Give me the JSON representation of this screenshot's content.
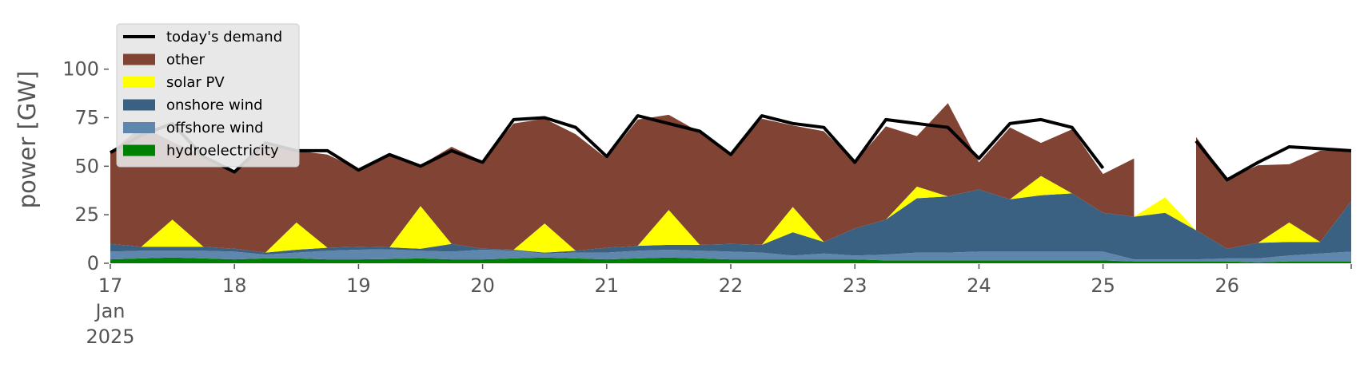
{
  "chart_data": {
    "type": "area",
    "title": "",
    "xlabel": "",
    "ylabel": "power [GW]",
    "ylim": [
      0,
      120
    ],
    "xlim": [
      "2025-01-17",
      "2025-01-27"
    ],
    "yticks": [
      0,
      25,
      50,
      75,
      100
    ],
    "xticks": [
      {
        "value": "2025-01-17",
        "lines": [
          "17",
          "Jan",
          "2025"
        ]
      },
      {
        "value": "2025-01-18",
        "lines": [
          "18"
        ]
      },
      {
        "value": "2025-01-19",
        "lines": [
          "19"
        ]
      },
      {
        "value": "2025-01-20",
        "lines": [
          "20"
        ]
      },
      {
        "value": "2025-01-21",
        "lines": [
          "21"
        ]
      },
      {
        "value": "2025-01-22",
        "lines": [
          "22"
        ]
      },
      {
        "value": "2025-01-23",
        "lines": [
          "23"
        ]
      },
      {
        "value": "2025-01-24",
        "lines": [
          "24"
        ]
      },
      {
        "value": "2025-01-25",
        "lines": [
          "25"
        ]
      },
      {
        "value": "2025-01-26",
        "lines": [
          "26"
        ]
      }
    ],
    "grid": false,
    "legend_placement": "top-left",
    "stacked": true,
    "x": [
      "2025-01-17 00:00",
      "2025-01-17 06:00",
      "2025-01-17 12:00",
      "2025-01-17 18:00",
      "2025-01-18 00:00",
      "2025-01-18 06:00",
      "2025-01-18 12:00",
      "2025-01-18 18:00",
      "2025-01-19 00:00",
      "2025-01-19 06:00",
      "2025-01-19 12:00",
      "2025-01-19 18:00",
      "2025-01-20 00:00",
      "2025-01-20 06:00",
      "2025-01-20 12:00",
      "2025-01-20 18:00",
      "2025-01-21 00:00",
      "2025-01-21 06:00",
      "2025-01-21 12:00",
      "2025-01-21 18:00",
      "2025-01-22 00:00",
      "2025-01-22 06:00",
      "2025-01-22 12:00",
      "2025-01-22 18:00",
      "2025-01-23 00:00",
      "2025-01-23 06:00",
      "2025-01-23 12:00",
      "2025-01-23 18:00",
      "2025-01-24 00:00",
      "2025-01-24 06:00",
      "2025-01-24 12:00",
      "2025-01-24 18:00",
      "2025-01-25 00:00",
      "2025-01-25 06:00",
      "2025-01-25 12:00",
      "2025-01-25 18:00",
      "2025-01-26 00:00",
      "2025-01-26 06:00",
      "2025-01-26 12:00",
      "2025-01-26 18:00",
      "2025-01-27 00:00"
    ],
    "series": [
      {
        "name": "hydroelectricity",
        "color": "#008000",
        "values": [
          2,
          2.5,
          3,
          2.5,
          2,
          2.5,
          2.5,
          2,
          2,
          2.2,
          2.5,
          2,
          2,
          2.5,
          3,
          2.5,
          2,
          2.5,
          3,
          2.5,
          2,
          2,
          2,
          2,
          2,
          1.5,
          1.5,
          1.5,
          1.5,
          1.5,
          1.5,
          1.5,
          1.5,
          1,
          1,
          1,
          1,
          0.5,
          1,
          1,
          1
        ]
      },
      {
        "name": "offshore wind",
        "color": "#5f86ad",
        "values": [
          4,
          4,
          3.5,
          4,
          4,
          2,
          3,
          4.5,
          5,
          5,
          4,
          4,
          5,
          4,
          2,
          3,
          3.5,
          4,
          4,
          4,
          4,
          3.5,
          2,
          3,
          2,
          3,
          4,
          4,
          4.5,
          4.5,
          4.5,
          4.5,
          4.5,
          1,
          1,
          1,
          1.5,
          2,
          3,
          4,
          5
        ]
      },
      {
        "name": "onshore wind",
        "color": "#3b6182",
        "values": [
          4,
          2,
          2,
          2,
          1.5,
          1,
          1.5,
          1.5,
          1.5,
          1,
          1,
          4,
          0.5,
          0.5,
          0.5,
          1,
          2.5,
          2.5,
          2.5,
          3,
          4,
          4,
          12,
          6,
          14,
          18,
          28,
          29,
          32,
          27,
          29,
          30,
          20,
          22,
          24,
          15,
          5,
          8,
          7,
          6,
          26
        ]
      },
      {
        "name": "solar PV",
        "color": "#ffff00",
        "values": [
          0,
          0,
          14,
          0,
          0,
          0,
          14,
          0,
          0,
          0,
          22,
          0,
          0,
          0,
          15,
          0,
          0,
          0,
          18,
          0,
          0,
          0,
          13,
          0,
          0,
          0,
          6,
          0,
          0,
          0,
          10,
          0,
          0,
          0,
          8,
          0,
          0,
          0,
          10,
          0,
          0
        ]
      },
      {
        "name": "other",
        "color": "#814333",
        "values": [
          47,
          62,
          40,
          47,
          40,
          55,
          37,
          48,
          40,
          48,
          21,
          50,
          45,
          65,
          54,
          60,
          46,
          65,
          49,
          58,
          46,
          65,
          42,
          57,
          34,
          48,
          26,
          48,
          14,
          37,
          17,
          33,
          20,
          30,
          null,
          48,
          36,
          40,
          30,
          47,
          26
        ]
      }
    ],
    "demand": {
      "name": "today's demand",
      "color": "#000000",
      "values": [
        57,
        66,
        72,
        55,
        47,
        62,
        58,
        58,
        48,
        56,
        50,
        58,
        52,
        74,
        75,
        70,
        55,
        76,
        72,
        68,
        56,
        76,
        72,
        70,
        52,
        74,
        72,
        70,
        54,
        72,
        74,
        70,
        49,
        null,
        null,
        63,
        43,
        52,
        60,
        59,
        58
      ]
    }
  }
}
